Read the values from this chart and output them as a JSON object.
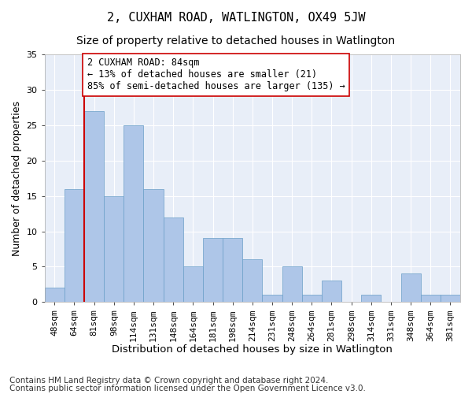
{
  "title": "2, CUXHAM ROAD, WATLINGTON, OX49 5JW",
  "subtitle": "Size of property relative to detached houses in Watlington",
  "xlabel": "Distribution of detached houses by size in Watlington",
  "ylabel": "Number of detached properties",
  "categories": [
    "48sqm",
    "64sqm",
    "81sqm",
    "98sqm",
    "114sqm",
    "131sqm",
    "148sqm",
    "164sqm",
    "181sqm",
    "198sqm",
    "214sqm",
    "231sqm",
    "248sqm",
    "264sqm",
    "281sqm",
    "298sqm",
    "314sqm",
    "331sqm",
    "348sqm",
    "364sqm",
    "381sqm"
  ],
  "values": [
    2,
    16,
    27,
    15,
    25,
    16,
    12,
    5,
    9,
    9,
    6,
    1,
    5,
    1,
    3,
    0,
    1,
    0,
    4,
    1,
    1
  ],
  "bar_color": "#aec6e8",
  "bar_edge_color": "#6a9fc8",
  "vline_color": "#cc0000",
  "vline_index": 2,
  "annotation_text": "2 CUXHAM ROAD: 84sqm\n← 13% of detached houses are smaller (21)\n85% of semi-detached houses are larger (135) →",
  "annotation_box_color": "#ffffff",
  "annotation_box_edge_color": "#cc0000",
  "ylim": [
    0,
    35
  ],
  "yticks": [
    0,
    5,
    10,
    15,
    20,
    25,
    30,
    35
  ],
  "footnote1": "Contains HM Land Registry data © Crown copyright and database right 2024.",
  "footnote2": "Contains public sector information licensed under the Open Government Licence v3.0.",
  "background_color": "#e8eef8",
  "title_fontsize": 11,
  "subtitle_fontsize": 10,
  "xlabel_fontsize": 9.5,
  "ylabel_fontsize": 9,
  "tick_fontsize": 8,
  "annotation_fontsize": 8.5,
  "footnote_fontsize": 7.5
}
